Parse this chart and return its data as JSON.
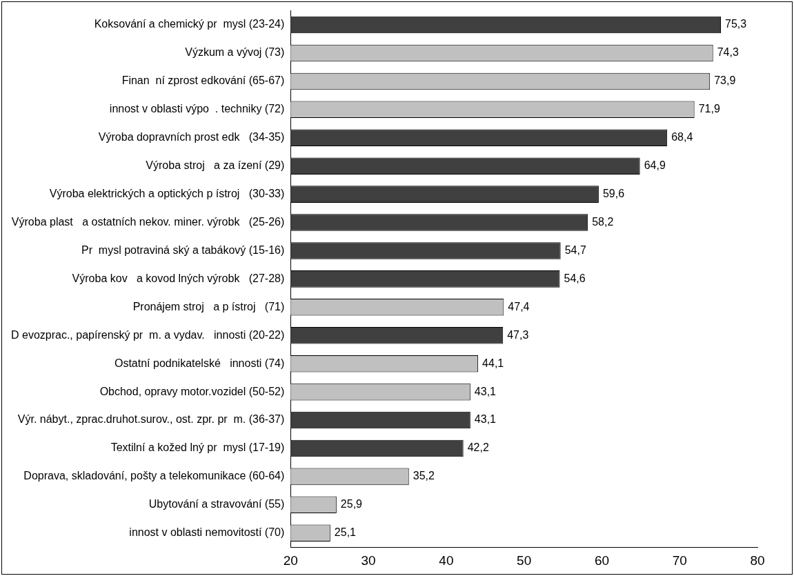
{
  "chart_data": {
    "type": "bar",
    "orientation": "horizontal",
    "categories": [
      "Koksování a chemický pr  mysl (23-24)",
      "Výzkum a vývoj (73)",
      "Finan  ní zprost edkování (65-67)",
      " innost v oblasti výpo  . techniky (72)",
      "Výroba dopravních prost edk   (34-35)",
      "Výroba stroj   a za ízení (29)",
      "Výroba elektrických a optických p ístroj   (30-33)",
      "Výroba plast   a ostatních nekov. miner. výrobk   (25-26)",
      "Pr  mysl potraviná ský a tabákový (15-16)",
      "Výroba kov   a kovod lných výrobk   (27-28)",
      "Pronájem stroj   a p ístroj   (71)",
      "D evozprac., papírenský pr  m. a vydav.   innosti (20-22)",
      "Ostatní podnikatelské   innosti (74)",
      "Obchod, opravy motor.vozidel (50-52)",
      "Výr. nábyt., zprac.druhot.surov., ost. zpr. pr  m. (36-37)",
      "Textilní a kožed lný pr  mysl (17-19)",
      "Doprava, skladování, pošty a telekomunikace (60-64)",
      "Ubytování a stravování (55)",
      " innost v oblasti nemovitostí (70)"
    ],
    "values": [
      75.3,
      74.3,
      73.9,
      71.9,
      68.4,
      64.9,
      59.6,
      58.2,
      54.7,
      54.6,
      47.4,
      47.3,
      44.1,
      43.1,
      43.1,
      42.2,
      35.2,
      25.9,
      25.1
    ],
    "value_labels": [
      "75,3",
      "74,3",
      "73,9",
      "71,9",
      "68,4",
      "64,9",
      "59,6",
      "58,2",
      "54,7",
      "54,6",
      "47,4",
      "47,3",
      "44,1",
      "43,1",
      "43,1",
      "42,2",
      "35,2",
      "25,9",
      "25,1"
    ],
    "colors": [
      "#404040",
      "#c0c0c0",
      "#c0c0c0",
      "#c0c0c0",
      "#404040",
      "#404040",
      "#404040",
      "#404040",
      "#404040",
      "#404040",
      "#c0c0c0",
      "#404040",
      "#c0c0c0",
      "#c0c0c0",
      "#404040",
      "#404040",
      "#c0c0c0",
      "#c0c0c0",
      "#c0c0c0"
    ],
    "xlim": [
      20,
      80
    ],
    "xticks": [
      20,
      30,
      40,
      50,
      60,
      70,
      80
    ],
    "grid": false,
    "legend": false
  }
}
